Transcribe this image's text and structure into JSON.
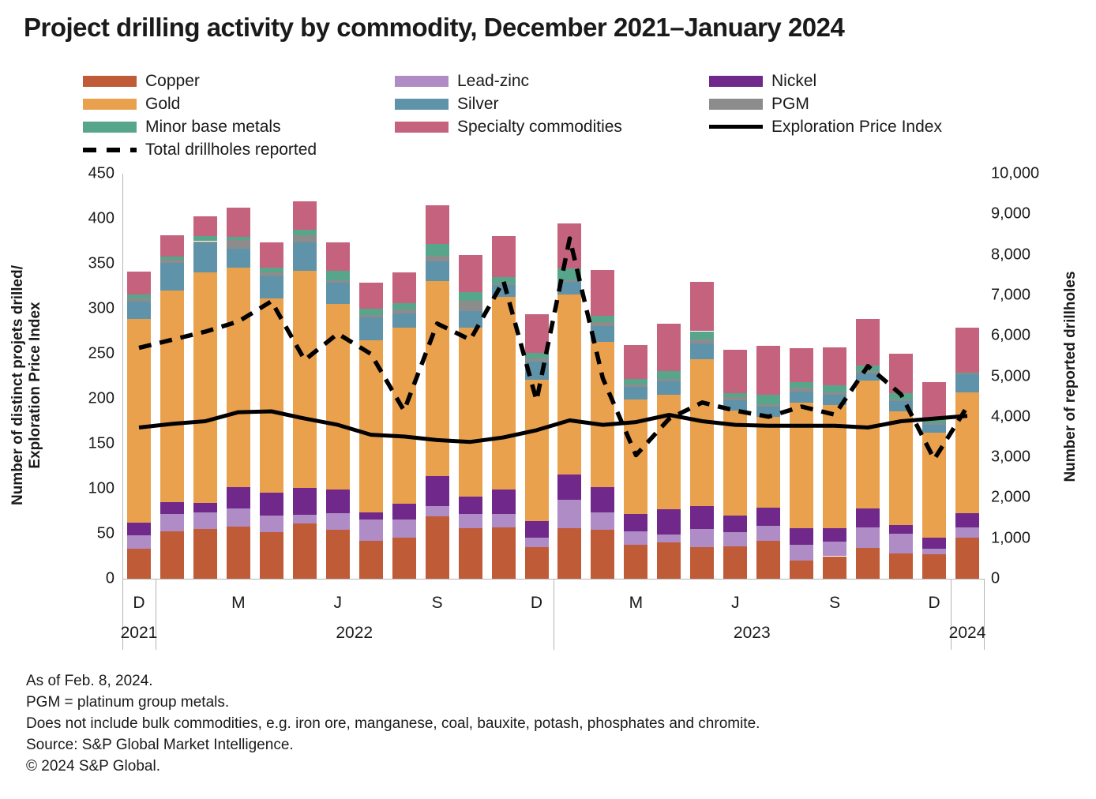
{
  "title": "Project drilling activity by commodity, December 2021–January 2024",
  "legend": {
    "columns": [
      [
        {
          "label": "Copper",
          "type": "bar",
          "color": "#bf5b37"
        },
        {
          "label": "Gold",
          "type": "bar",
          "color": "#eaa14e"
        },
        {
          "label": "Minor base metals",
          "type": "bar",
          "color": "#57a68c"
        },
        {
          "label": "Total drillholes reported",
          "type": "dash",
          "color": "#000000"
        }
      ],
      [
        {
          "label": "Lead-zinc",
          "type": "bar",
          "color": "#af8cc5"
        },
        {
          "label": "Silver",
          "type": "bar",
          "color": "#5e93a9"
        },
        {
          "label": "Specialty commodities",
          "type": "bar",
          "color": "#c5637f"
        }
      ],
      [
        {
          "label": "Nickel",
          "type": "bar",
          "color": "#70298a"
        },
        {
          "label": "PGM",
          "type": "bar",
          "color": "#8c8c8c"
        },
        {
          "label": "Exploration Price Index",
          "type": "line",
          "color": "#000000"
        }
      ]
    ]
  },
  "chart_data": {
    "type": "bar",
    "subtype": "stacked-bars-with-two-lines",
    "categories": [
      "Dec 2021",
      "Jan 2022",
      "Feb 2022",
      "Mar 2022",
      "Apr 2022",
      "May 2022",
      "Jun 2022",
      "Jul 2022",
      "Aug 2022",
      "Sep 2022",
      "Oct 2022",
      "Nov 2022",
      "Dec 2022",
      "Jan 2023",
      "Feb 2023",
      "Mar 2023",
      "Apr 2023",
      "May 2023",
      "Jun 2023",
      "Jul 2023",
      "Aug 2023",
      "Sep 2023",
      "Oct 2023",
      "Nov 2023",
      "Dec 2023",
      "Jan 2024"
    ],
    "series": [
      {
        "name": "Copper",
        "color": "#bf5b37",
        "axis": "left",
        "values": [
          33,
          53,
          55,
          58,
          52,
          61,
          54,
          42,
          46,
          69,
          56,
          57,
          35,
          56,
          54,
          38,
          40,
          35,
          36,
          42,
          20,
          25,
          34,
          28,
          27,
          46
        ]
      },
      {
        "name": "Lead-zinc",
        "color": "#af8cc5",
        "axis": "left",
        "values": [
          15,
          19,
          19,
          20,
          18,
          10,
          19,
          24,
          20,
          12,
          16,
          15,
          11,
          32,
          20,
          15,
          9,
          20,
          16,
          17,
          18,
          16,
          23,
          22,
          6,
          11
        ]
      },
      {
        "name": "Nickel",
        "color": "#70298a",
        "axis": "left",
        "values": [
          14,
          13,
          10,
          24,
          26,
          30,
          26,
          8,
          17,
          33,
          19,
          27,
          18,
          28,
          28,
          19,
          28,
          26,
          18,
          20,
          18,
          15,
          21,
          10,
          13,
          16
        ]
      },
      {
        "name": "Gold",
        "color": "#eaa14e",
        "axis": "left",
        "values": [
          227,
          235,
          256,
          244,
          215,
          241,
          206,
          191,
          196,
          217,
          188,
          214,
          157,
          200,
          161,
          127,
          127,
          163,
          117,
          101,
          140,
          137,
          142,
          126,
          116,
          134
        ]
      },
      {
        "name": "Silver",
        "color": "#5e93a9",
        "axis": "left",
        "values": [
          19,
          31,
          33,
          21,
          25,
          32,
          24,
          25,
          16,
          22,
          18,
          13,
          20,
          14,
          18,
          14,
          15,
          17,
          11,
          11,
          12,
          11,
          8,
          11,
          9,
          20
        ]
      },
      {
        "name": "PGM",
        "color": "#8c8c8c",
        "axis": "left",
        "values": [
          3,
          3,
          2,
          9,
          4,
          8,
          3,
          3,
          4,
          6,
          12,
          2,
          4,
          2,
          4,
          3,
          3,
          5,
          4,
          3,
          4,
          3,
          3,
          2,
          2,
          1
        ]
      },
      {
        "name": "Minor base metals",
        "color": "#57a68c",
        "axis": "left",
        "values": [
          5,
          4,
          6,
          4,
          6,
          6,
          10,
          7,
          7,
          13,
          9,
          7,
          6,
          13,
          7,
          6,
          9,
          9,
          4,
          10,
          6,
          8,
          6,
          7,
          3,
          1
        ]
      },
      {
        "name": "Specialty commodities",
        "color": "#c5637f",
        "axis": "left",
        "values": [
          25,
          24,
          22,
          32,
          28,
          31,
          32,
          29,
          34,
          43,
          42,
          46,
          43,
          50,
          51,
          38,
          52,
          55,
          48,
          55,
          38,
          42,
          52,
          44,
          42,
          50
        ]
      }
    ],
    "line_series": [
      {
        "name": "Exploration Price Index",
        "style": "solid",
        "color": "#000000",
        "axis": "left",
        "values": [
          168,
          172,
          175,
          185,
          186,
          178,
          171,
          160,
          158,
          154,
          152,
          157,
          165,
          176,
          171,
          174,
          182,
          175,
          171,
          170,
          170,
          170,
          168,
          175,
          178,
          181
        ]
      },
      {
        "name": "Total drillholes reported",
        "style": "dashed",
        "color": "#000000",
        "axis": "right",
        "values": [
          5700,
          5900,
          6100,
          6350,
          6850,
          5400,
          6050,
          5550,
          4150,
          6300,
          5900,
          7350,
          4400,
          8400,
          4950,
          3050,
          3950,
          4350,
          4150,
          4000,
          4250,
          4050,
          5250,
          4550,
          2950,
          4250
        ]
      }
    ],
    "axes": {
      "left": {
        "title": "Number of distinct projets drilled/\nExploration Price Index",
        "min": 0,
        "max": 450,
        "step": 50,
        "tick_labels": [
          "0",
          "50",
          "100",
          "150",
          "200",
          "250",
          "300",
          "350",
          "400",
          "450"
        ]
      },
      "right": {
        "title": "Number of reported drillholes",
        "min": 0,
        "max": 10000,
        "step": 1000,
        "tick_labels": [
          "0",
          "1,000",
          "2,000",
          "3,000",
          "4,000",
          "5,000",
          "6,000",
          "7,000",
          "8,000",
          "9,000",
          "10,000"
        ]
      }
    },
    "x_ticks": [
      {
        "i": 0,
        "label": "D"
      },
      {
        "i": 3,
        "label": "M"
      },
      {
        "i": 6,
        "label": "J"
      },
      {
        "i": 9,
        "label": "S"
      },
      {
        "i": 12,
        "label": "D"
      },
      {
        "i": 15,
        "label": "M"
      },
      {
        "i": 18,
        "label": "J"
      },
      {
        "i": 21,
        "label": "S"
      },
      {
        "i": 24,
        "label": "D"
      }
    ],
    "year_groups": [
      {
        "label": "2021",
        "from": 0,
        "to": 1
      },
      {
        "label": "2022",
        "from": 1,
        "to": 13
      },
      {
        "label": "2023",
        "from": 13,
        "to": 25
      },
      {
        "label": "2024",
        "from": 25,
        "to": 26
      }
    ],
    "grid": "off",
    "legend_position": "top"
  },
  "footnotes": [
    "As of Feb. 8, 2024.",
    "PGM = platinum group metals.",
    "Does not include bulk commodities, e.g. iron ore, manganese, coal, bauxite, potash, phosphates and chromite.",
    "Source: S&P Global Market Intelligence.",
    "© 2024 S&P Global."
  ]
}
